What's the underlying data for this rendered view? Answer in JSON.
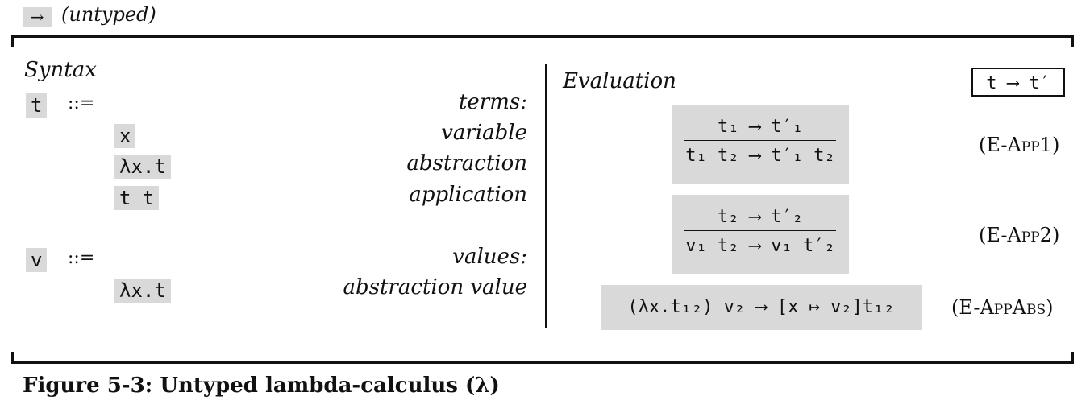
{
  "header": {
    "arrow": "→",
    "label": "(untyped)"
  },
  "syntax": {
    "title": "Syntax",
    "terms": {
      "meta": "t",
      "assign": "::=",
      "desc": "terms:"
    },
    "term_items": [
      {
        "form": "x",
        "desc": "variable"
      },
      {
        "form": "λx.t",
        "desc": "abstraction"
      },
      {
        "form": "t t",
        "desc": "application"
      }
    ],
    "values": {
      "meta": "v",
      "assign": "::=",
      "desc": "values:"
    },
    "value_items": [
      {
        "form": "λx.t",
        "desc": "abstraction value"
      }
    ]
  },
  "evaluation": {
    "title": "Evaluation",
    "judgment": "t ⟶ t′",
    "rules": [
      {
        "premise": "t₁ ⟶ t′₁",
        "conclusion": "t₁ t₂ ⟶ t′₁ t₂",
        "name": "(E-App1)"
      },
      {
        "premise": "t₂ ⟶ t′₂",
        "conclusion": "v₁ t₂ ⟶ v₁ t′₂",
        "name": "(E-App2)"
      },
      {
        "axiom": "(λx.t₁₂) v₂ ⟶ [x ↦ v₂]t₁₂",
        "name": "(E-AppAbs)"
      }
    ]
  },
  "caption": "Figure 5-3: Untyped lambda-calculus (λ)"
}
